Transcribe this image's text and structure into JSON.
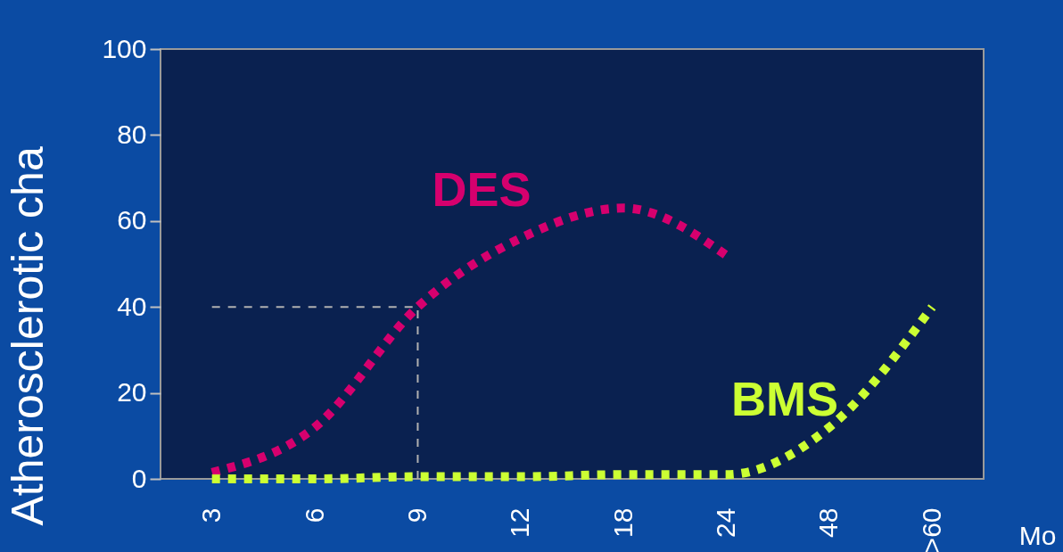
{
  "chart_data": {
    "type": "line",
    "ylabel": "Atherosclerotic cha",
    "xlabel": "Mo",
    "categories": [
      "3",
      "6",
      "9",
      "12",
      "18",
      "24",
      "48",
      ">60"
    ],
    "series": [
      {
        "name": "DES",
        "color": "#d6006e",
        "values": [
          1.5,
          12,
          40,
          56,
          63,
          52,
          null,
          null
        ]
      },
      {
        "name": "BMS",
        "color": "#ccff33",
        "values": [
          0,
          0,
          0.5,
          0.5,
          1,
          1,
          12,
          40
        ]
      }
    ],
    "ylim": [
      0,
      100
    ],
    "yticks": [
      0,
      20,
      40,
      60,
      80,
      100
    ],
    "ref_lines": [
      {
        "axis": "y",
        "value": 40,
        "color": "#b0b0b0",
        "line_style": "dotted"
      },
      {
        "axis": "x",
        "value": "9",
        "color": "#b0b0b0",
        "line_style": "dotted"
      }
    ],
    "line_style": "dotted",
    "marker": "none",
    "grid": false,
    "legend": false
  }
}
